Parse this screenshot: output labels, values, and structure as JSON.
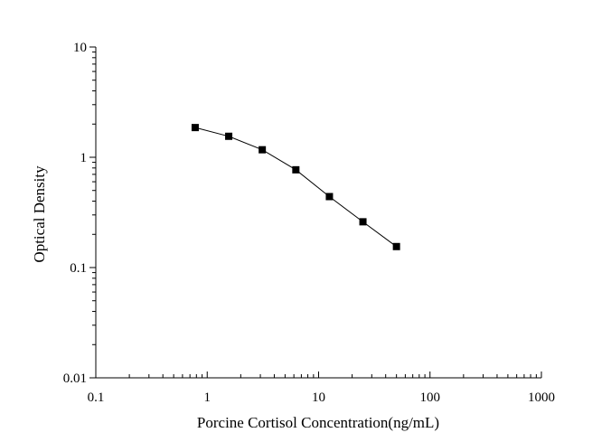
{
  "chart_data": {
    "type": "line",
    "title": "",
    "xlabel": "Porcine Cortisol Concentration(ng/mL)",
    "ylabel": "Optical Density",
    "x_scale": "log",
    "y_scale": "log",
    "xlim": [
      0.1,
      1000
    ],
    "ylim": [
      0.01,
      10
    ],
    "x_ticks": [
      "0.1",
      "1",
      "10",
      "100",
      "1000"
    ],
    "y_ticks": [
      "0.01",
      "0.1",
      "1",
      "10"
    ],
    "grid": false,
    "legend": "none",
    "marker": "square",
    "color": "#000000",
    "series": [
      {
        "x": [
          0.78,
          1.56,
          3.12,
          6.25,
          12.5,
          25,
          50
        ],
        "y": [
          1.86,
          1.55,
          1.17,
          0.77,
          0.44,
          0.26,
          0.155
        ]
      }
    ]
  }
}
